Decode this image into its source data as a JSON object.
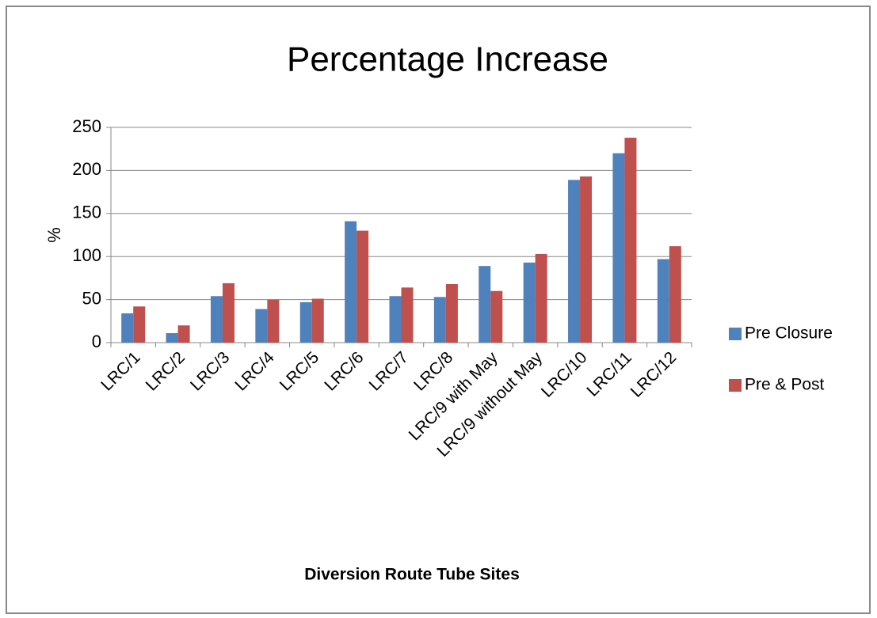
{
  "chart_data": {
    "type": "bar",
    "title": "Percentage Increase",
    "y_label": "%",
    "x_label": "Diversion Route Tube Sites",
    "categories": [
      "LRC/1",
      "LRC/2",
      "LRC/3",
      "LRC/4",
      "LRC/5",
      "LRC/6",
      "LRC/7",
      "LRC/8",
      "LRC/9 with May",
      "LRC/9 without May",
      "LRC/10",
      "LRC/11",
      "LRC/12"
    ],
    "series": [
      {
        "name": "Pre Closure",
        "color": "#4f81bd",
        "values": [
          34,
          11,
          54,
          39,
          47,
          141,
          54,
          53,
          89,
          93,
          189,
          220,
          97
        ]
      },
      {
        "name": "Pre & Post",
        "color": "#c0504d",
        "values": [
          42,
          20,
          69,
          50,
          51,
          130,
          64,
          68,
          60,
          103,
          193,
          238,
          112
        ]
      }
    ],
    "ylim": [
      0,
      250
    ],
    "yticks": [
      0,
      50,
      100,
      150,
      200,
      250
    ],
    "grid": true,
    "legend": "right"
  }
}
